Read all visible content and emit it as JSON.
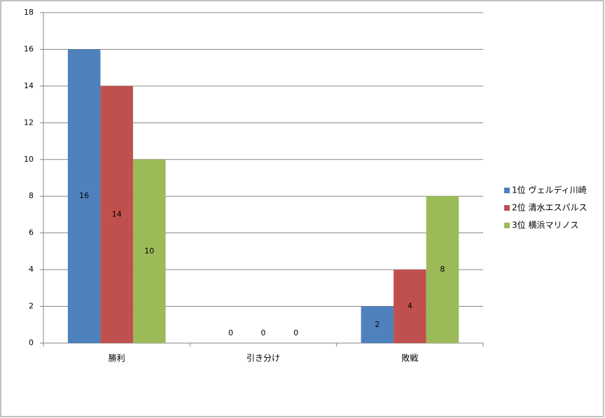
{
  "chart_data": {
    "type": "bar",
    "categories": [
      "勝利",
      "引き分け",
      "敗戦"
    ],
    "series": [
      {
        "name": "1位  ヴェルディ川崎",
        "color": "#4f81bd",
        "values": [
          16,
          0,
          2
        ]
      },
      {
        "name": "2位  清水エスパルス",
        "color": "#c0504d",
        "values": [
          14,
          0,
          4
        ]
      },
      {
        "name": "3位  横浜マリノス",
        "color": "#9bbb59",
        "values": [
          10,
          0,
          8
        ]
      }
    ],
    "ylim": [
      0,
      18
    ],
    "yticks": [
      0,
      2,
      4,
      6,
      8,
      10,
      12,
      14,
      16,
      18
    ],
    "grid": true,
    "legend": "right",
    "data_labels": true
  }
}
